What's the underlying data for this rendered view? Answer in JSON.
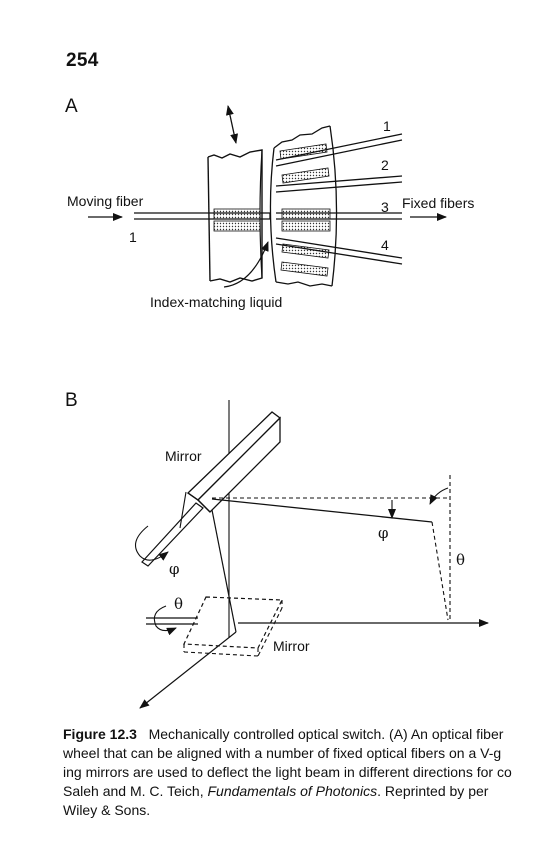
{
  "page_number": "254",
  "panel_a": {
    "label": "A",
    "moving_fiber_label": "Moving fiber",
    "moving_fiber_number": "1",
    "fixed_fibers_label": "Fixed fibers",
    "fiber_numbers": [
      "1",
      "2",
      "3",
      "4"
    ],
    "liquid_label": "Index-matching liquid"
  },
  "panel_b": {
    "label": "B",
    "mirror_top_label": "Mirror",
    "mirror_bottom_label": "Mirror",
    "phi": "φ",
    "theta": "θ"
  },
  "caption": {
    "figure_label": "Figure 12.3",
    "line1": "Mechanically controlled optical switch. (A) An optical fiber",
    "line2": "wheel that can be aligned with a number of fixed optical fibers on a V-g",
    "line3": "ing mirrors are used to deflect the light beam in different directions for co",
    "line4_pre": "Saleh and M. C. Teich, ",
    "line4_title": "Fundamentals of Photonics",
    "line4_post": ". Reprinted by per",
    "line5": "Wiley & Sons."
  }
}
